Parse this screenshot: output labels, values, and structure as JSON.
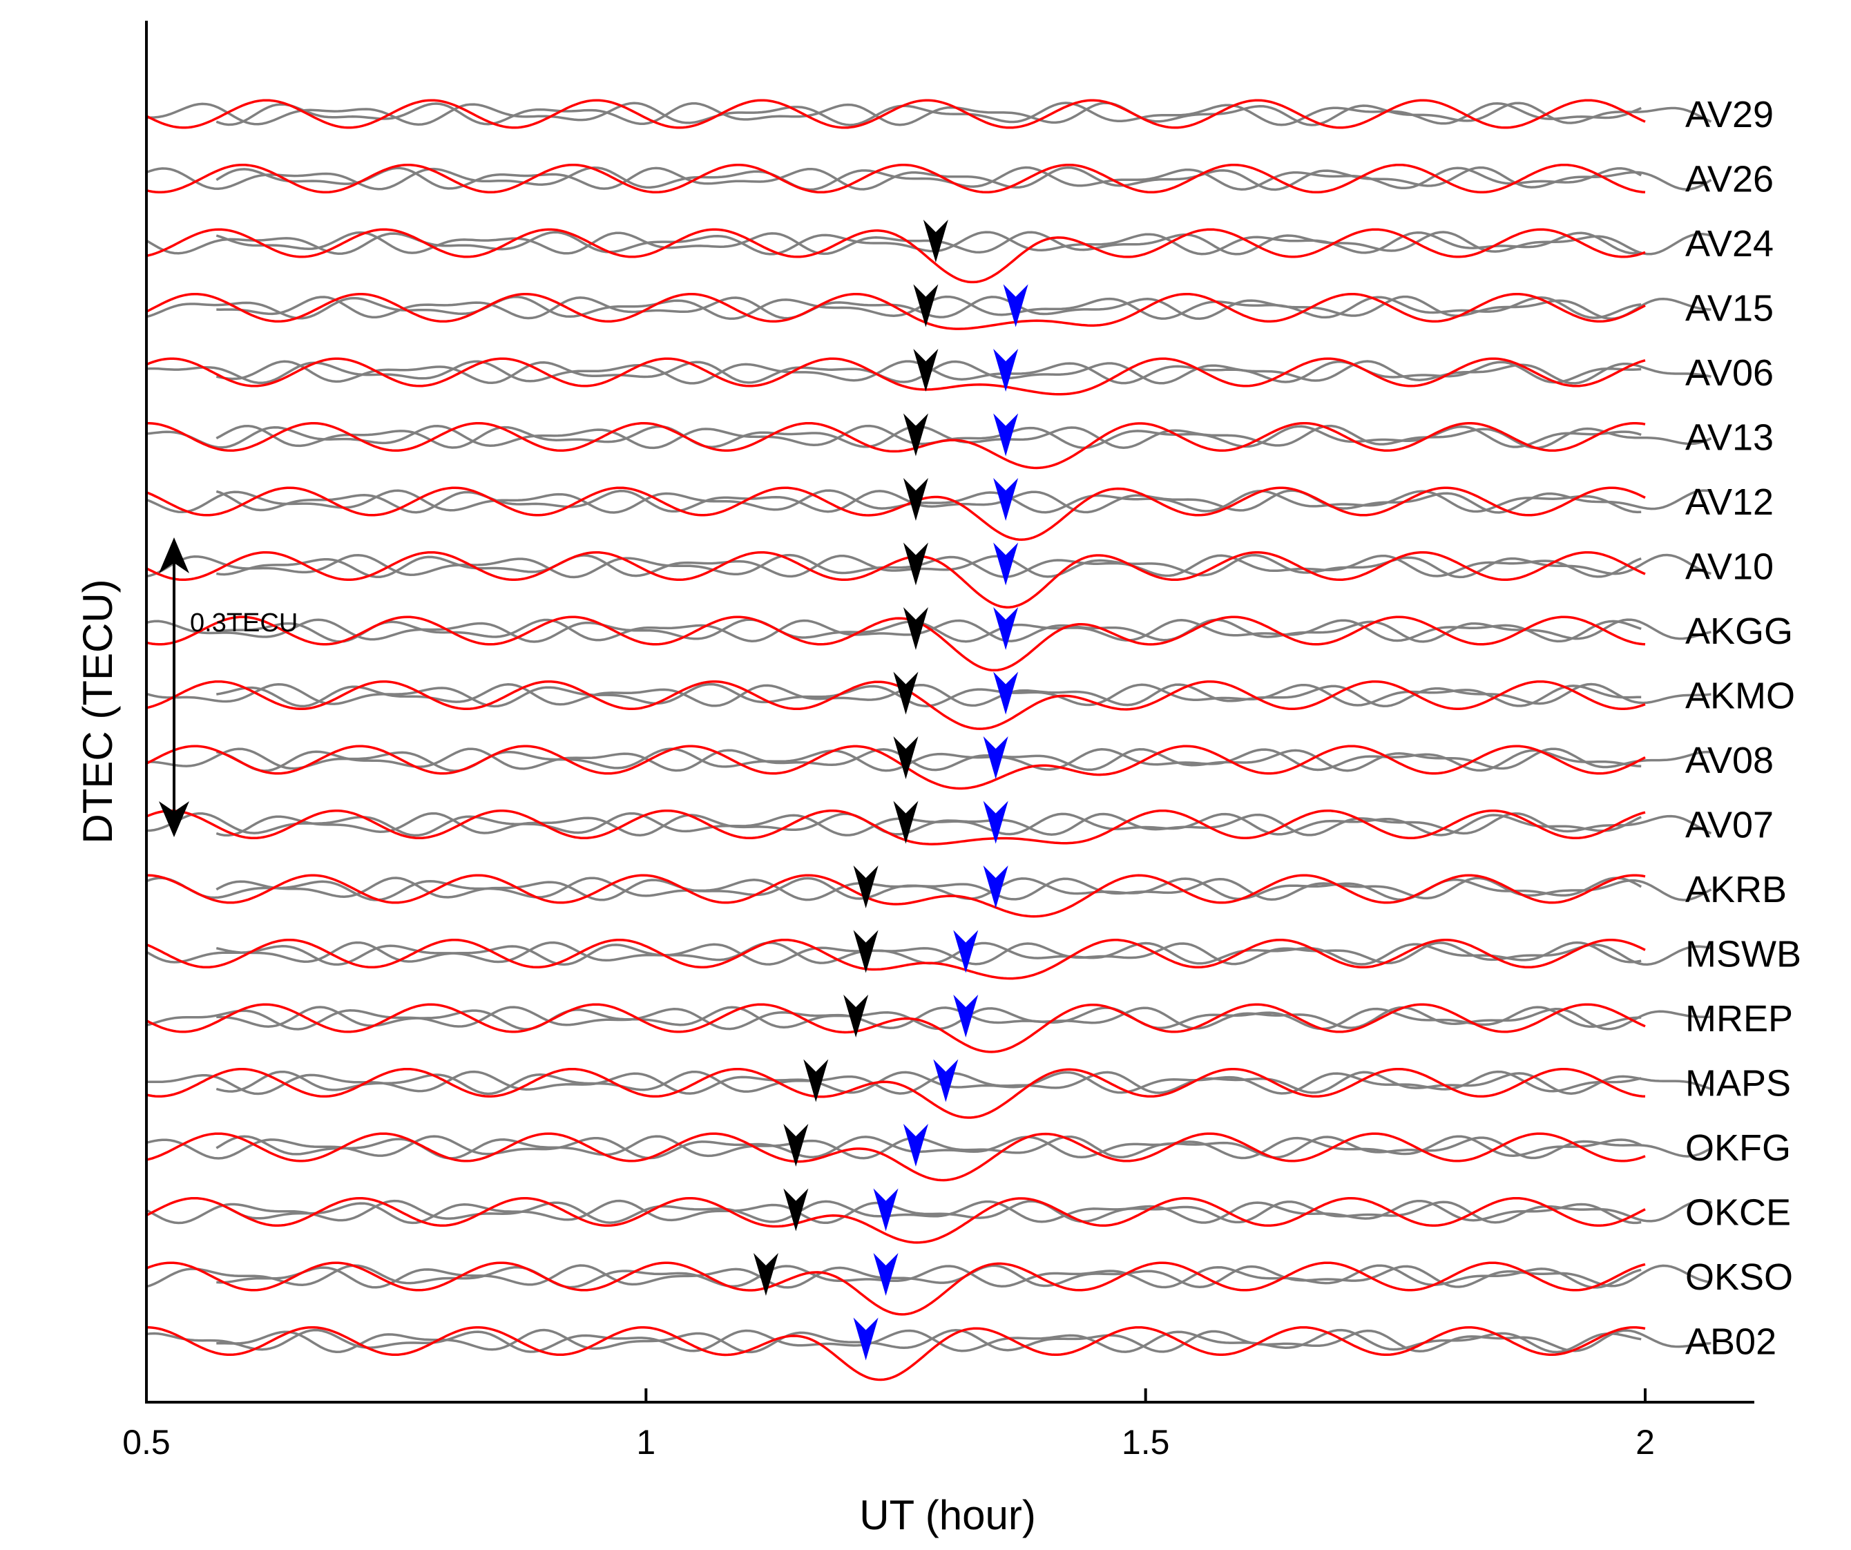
{
  "chart_data": {
    "type": "line",
    "title": "",
    "xlabel": "UT (hour)",
    "ylabel": "DTEC (TECU)",
    "xlim": [
      0.5,
      2.15
    ],
    "xticks": [
      "0.5",
      "1",
      "1.5",
      "2"
    ],
    "xtick_values": [
      0.5,
      1,
      1.5,
      2
    ],
    "scale_bar": {
      "label": "0.3TECU",
      "value": 0.3
    },
    "series_colors": {
      "observed": "#ff0000",
      "other": "#808080",
      "arrival_1": "#000000",
      "arrival_2": "#0000ff"
    },
    "stations": [
      {
        "name": "AV29",
        "first_arrival": null,
        "second_arrival": null
      },
      {
        "name": "AV26",
        "first_arrival": null,
        "second_arrival": null
      },
      {
        "name": "AV24",
        "first_arrival": 1.29,
        "second_arrival": null
      },
      {
        "name": "AV15",
        "first_arrival": 1.28,
        "second_arrival": 1.37
      },
      {
        "name": "AV06",
        "first_arrival": 1.28,
        "second_arrival": 1.36
      },
      {
        "name": "AV13",
        "first_arrival": 1.27,
        "second_arrival": 1.36
      },
      {
        "name": "AV12",
        "first_arrival": 1.27,
        "second_arrival": 1.36
      },
      {
        "name": "AV10",
        "first_arrival": 1.27,
        "second_arrival": 1.36
      },
      {
        "name": "AKGG",
        "first_arrival": 1.27,
        "second_arrival": 1.36
      },
      {
        "name": "AKMO",
        "first_arrival": 1.26,
        "second_arrival": 1.36
      },
      {
        "name": "AV08",
        "first_arrival": 1.26,
        "second_arrival": 1.35
      },
      {
        "name": "AV07",
        "first_arrival": 1.26,
        "second_arrival": 1.35
      },
      {
        "name": "AKRB",
        "first_arrival": 1.22,
        "second_arrival": 1.35
      },
      {
        "name": "MSWB",
        "first_arrival": 1.22,
        "second_arrival": 1.32
      },
      {
        "name": "MREP",
        "first_arrival": 1.21,
        "second_arrival": 1.32
      },
      {
        "name": "MAPS",
        "first_arrival": 1.17,
        "second_arrival": 1.3
      },
      {
        "name": "OKFG",
        "first_arrival": 1.15,
        "second_arrival": 1.27
      },
      {
        "name": "OKCE",
        "first_arrival": 1.15,
        "second_arrival": 1.24
      },
      {
        "name": "OKSO",
        "first_arrival": 1.12,
        "second_arrival": 1.24
      },
      {
        "name": "AB02",
        "first_arrival": null,
        "second_arrival": 1.22
      }
    ]
  }
}
